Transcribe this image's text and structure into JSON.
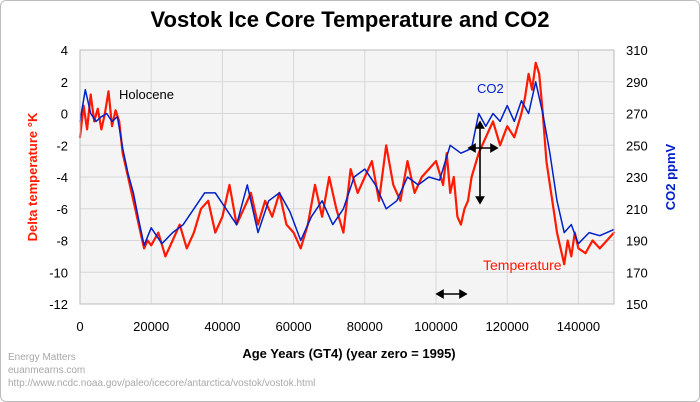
{
  "chart_data": {
    "type": "line",
    "title": "Vostok Ice Core Temperature and CO2",
    "xlabel": "Age Years (GT4) (year zero = 1995)",
    "ylabel_left": "Delta temperature °K",
    "ylabel_right": "CO2 ppmV",
    "xlim": [
      0,
      150000
    ],
    "ylim_left": [
      -12,
      4
    ],
    "ylim_right": [
      150,
      310
    ],
    "x_ticks": [
      "0",
      "20000",
      "40000",
      "60000",
      "80000",
      "100000",
      "120000",
      "140000"
    ],
    "y_ticks_left": [
      "4",
      "2",
      "0",
      "-2",
      "-4",
      "-6",
      "-8",
      "-10",
      "-12"
    ],
    "y_ticks_right": [
      "310",
      "290",
      "270",
      "250",
      "230",
      "210",
      "190",
      "170",
      "150"
    ],
    "grid": true,
    "annotations": {
      "holocene": "Holocene",
      "co2": "CO2",
      "temperature": "Temperature"
    },
    "series": [
      {
        "name": "Temperature",
        "axis": "left",
        "color": "#ff1a00",
        "x": [
          0,
          1000,
          2000,
          3000,
          4000,
          5000,
          6000,
          7000,
          8000,
          9000,
          10000,
          11000,
          12000,
          13000,
          14000,
          15000,
          16000,
          17000,
          18000,
          19000,
          20000,
          22000,
          24000,
          26000,
          28000,
          30000,
          32000,
          34000,
          36000,
          38000,
          40000,
          42000,
          44000,
          46000,
          48000,
          50000,
          52000,
          54000,
          56000,
          58000,
          60000,
          62000,
          64000,
          66000,
          68000,
          70000,
          72000,
          74000,
          76000,
          78000,
          80000,
          82000,
          84000,
          86000,
          88000,
          90000,
          92000,
          94000,
          96000,
          98000,
          100000,
          102000,
          103000,
          104000,
          105000,
          106000,
          107000,
          108000,
          109000,
          110000,
          112000,
          114000,
          116000,
          118000,
          120000,
          122000,
          124000,
          125000,
          126000,
          127000,
          128000,
          129000,
          130000,
          131000,
          132000,
          133000,
          134000,
          135000,
          136000,
          137000,
          138000,
          139000,
          140000,
          142000,
          144000,
          146000,
          148000,
          150000
        ],
        "y": [
          -1.5,
          0.5,
          -1.0,
          1.2,
          -0.5,
          0.3,
          -1.0,
          0.0,
          1.4,
          -0.8,
          0.2,
          -0.5,
          -2.5,
          -3.5,
          -4.5,
          -5.5,
          -6.5,
          -7.5,
          -8.5,
          -8.0,
          -8.3,
          -7.5,
          -9.0,
          -8.0,
          -7.0,
          -8.5,
          -7.5,
          -6.0,
          -5.5,
          -7.5,
          -6.5,
          -4.5,
          -7.0,
          -6.0,
          -5.0,
          -7.0,
          -5.5,
          -6.5,
          -5.0,
          -7.0,
          -7.5,
          -8.5,
          -7.0,
          -4.5,
          -6.5,
          -4.0,
          -6.0,
          -7.5,
          -3.5,
          -5.0,
          -4.0,
          -3.0,
          -5.5,
          -2.0,
          -4.5,
          -5.5,
          -3.0,
          -5.0,
          -4.0,
          -3.5,
          -3.0,
          -4.5,
          -2.5,
          -5.0,
          -4.0,
          -6.5,
          -7.0,
          -6.0,
          -5.5,
          -4.0,
          -2.5,
          -1.5,
          -0.5,
          -2.0,
          -0.8,
          -1.5,
          0.0,
          1.0,
          2.5,
          1.5,
          3.2,
          2.5,
          0.0,
          -3.0,
          -4.5,
          -6.0,
          -7.5,
          -8.5,
          -9.5,
          -8.0,
          -9.0,
          -7.5,
          -8.5,
          -8.8,
          -8.0,
          -8.5,
          -8.0,
          -7.5
        ]
      },
      {
        "name": "CO2",
        "axis": "right",
        "color": "#0020c8",
        "x": [
          0,
          1500,
          3000,
          4500,
          6000,
          7500,
          9000,
          10500,
          12000,
          13500,
          15000,
          16500,
          18000,
          20000,
          23000,
          26000,
          29000,
          32000,
          35000,
          38000,
          41000,
          44000,
          47000,
          50000,
          53000,
          56000,
          59000,
          62000,
          65000,
          68000,
          71000,
          74000,
          77000,
          80000,
          83000,
          86000,
          89000,
          92000,
          95000,
          98000,
          101000,
          104000,
          107000,
          110000,
          112000,
          114000,
          116000,
          118000,
          120000,
          122000,
          124000,
          126000,
          128000,
          130000,
          132000,
          134000,
          136000,
          138000,
          140000,
          143000,
          146000,
          150000
        ],
        "y": [
          265,
          285,
          270,
          265,
          268,
          270,
          265,
          268,
          248,
          232,
          220,
          203,
          187,
          198,
          188,
          195,
          200,
          210,
          220,
          220,
          210,
          200,
          225,
          195,
          215,
          220,
          208,
          190,
          205,
          215,
          200,
          210,
          230,
          235,
          225,
          210,
          215,
          230,
          225,
          230,
          228,
          250,
          245,
          248,
          270,
          262,
          270,
          265,
          275,
          265,
          278,
          270,
          290,
          270,
          245,
          215,
          195,
          200,
          188,
          195,
          193,
          197
        ]
      }
    ]
  },
  "credits": {
    "line1": "Energy Matters",
    "line2": "euanmearns.com",
    "line3": "http://www.ncdc.noaa.gov/paleo/icecore/antarctica/vostok/vostok.html"
  }
}
